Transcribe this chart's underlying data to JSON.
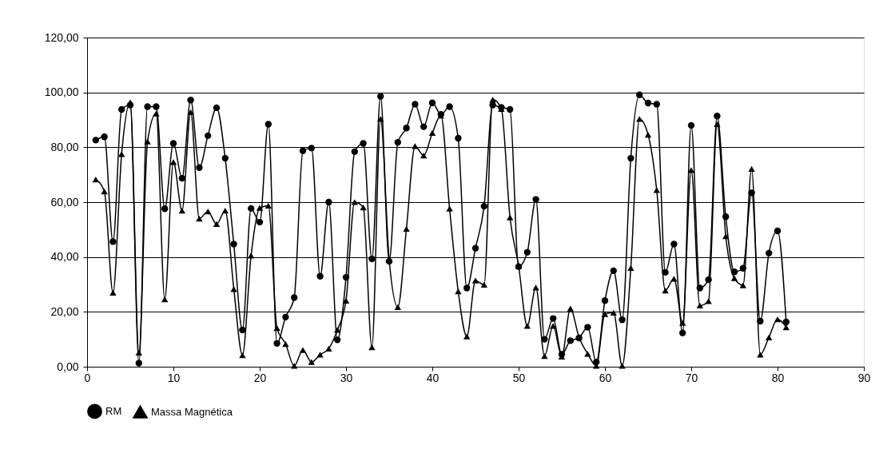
{
  "chart_data": {
    "type": "line",
    "x": [
      1,
      2,
      3,
      4,
      5,
      6,
      7,
      8,
      9,
      10,
      11,
      12,
      13,
      14,
      15,
      16,
      17,
      18,
      19,
      20,
      21,
      22,
      23,
      24,
      25,
      26,
      27,
      28,
      29,
      30,
      31,
      32,
      33,
      34,
      35,
      36,
      37,
      38,
      39,
      40,
      41,
      42,
      43,
      44,
      45,
      46,
      47,
      48,
      49,
      50,
      51,
      52,
      53,
      54,
      55,
      56,
      57,
      58,
      59,
      60,
      61,
      62,
      63,
      64,
      65,
      66,
      67,
      68,
      69,
      70,
      71,
      72,
      73,
      74,
      75,
      76,
      77,
      78,
      79,
      80,
      81
    ],
    "series": [
      {
        "name": "RM",
        "color": "#000000",
        "marker": "circle",
        "values": [
          82.6,
          83.8,
          45.6,
          93.8,
          95.4,
          1.3,
          94.8,
          94.8,
          57.6,
          81.4,
          68.7,
          97.2,
          72.6,
          84.2,
          94.4,
          76,
          44.7,
          13.4,
          57.7,
          52.7,
          88.4,
          8.5,
          18.1,
          25.2,
          78.7,
          79.7,
          33,
          60,
          9.8,
          32.6,
          78.4,
          81.4,
          39.3,
          98.6,
          38.4,
          81.8,
          87,
          95.7,
          87.5,
          96.2,
          92,
          94.8,
          83.3,
          28.7,
          43.2,
          58.5,
          95.4,
          94.5,
          93.8,
          36.5,
          41.7,
          61,
          10,
          17.6,
          4.5,
          9.5,
          10.5,
          14.4,
          1.7,
          24.1,
          35,
          17.1,
          76,
          99.1,
          96.1,
          95.7,
          34.4,
          44.7,
          12.3,
          88,
          28.7,
          31.7,
          91.4,
          54.7,
          34.6,
          35.9,
          63.4,
          16.6,
          41.4,
          49.5,
          16.3
        ]
      },
      {
        "name": "Massa Magnética",
        "color": "#000000",
        "marker": "triangle",
        "values": [
          68.3,
          63.9,
          27,
          77.5,
          96.4,
          5.1,
          82.1,
          92.3,
          24.6,
          74.6,
          56.9,
          92.8,
          54,
          56.6,
          52,
          56.9,
          28.3,
          4.2,
          40.5,
          57.9,
          58.7,
          14.1,
          8.3,
          0.3,
          6.1,
          1.7,
          4.4,
          6.6,
          13.4,
          24.1,
          60,
          58.1,
          7.1,
          90.3,
          39.1,
          21.7,
          50.3,
          80.4,
          77,
          85.2,
          91.6,
          57.6,
          27.5,
          11,
          31.4,
          29.9,
          97.4,
          94,
          54.4,
          36.7,
          14.9,
          28.9,
          3.9,
          14.9,
          3.7,
          21.2,
          10.7,
          4.7,
          0.3,
          19.2,
          19.7,
          0.3,
          36,
          90.3,
          84.6,
          64.4,
          27.8,
          32.1,
          16,
          71.7,
          22.3,
          23.9,
          88.4,
          47.6,
          32.3,
          29.7,
          72.1,
          4.4,
          10.7,
          17.3,
          14.4
        ]
      }
    ],
    "xlim": [
      0,
      90
    ],
    "xticks": [
      0,
      10,
      20,
      30,
      40,
      50,
      60,
      70,
      80,
      90
    ],
    "ylim": [
      0,
      120
    ],
    "yticks": [
      {
        "value": 0,
        "label": "0,00"
      },
      {
        "value": 20,
        "label": "20,00"
      },
      {
        "value": 40,
        "label": "40,00"
      },
      {
        "value": 60,
        "label": "60,00"
      },
      {
        "value": 80,
        "label": "80,00"
      },
      {
        "value": 100,
        "label": "100,00"
      },
      {
        "value": 120,
        "label": "120,00"
      }
    ],
    "grid": "y",
    "legend": "bottom",
    "line_style": "solid"
  }
}
